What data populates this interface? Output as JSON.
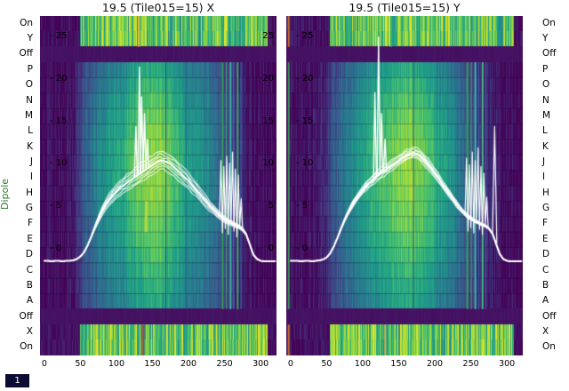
{
  "figure": {
    "ylabel_text": "Dipole",
    "ylabel_color": "#2e7d32",
    "page_indicator": "1",
    "dipole_labels": [
      "On",
      "Y",
      "Off",
      "P",
      "O",
      "N",
      "M",
      "L",
      "K",
      "J",
      "I",
      "H",
      "G",
      "F",
      "E",
      "D",
      "C",
      "B",
      "A",
      "Off",
      "X",
      "On"
    ],
    "colormap": [
      "#440154",
      "#46327e",
      "#365c8d",
      "#277f8e",
      "#1fa187",
      "#4ac16d",
      "#a0da39",
      "#fde725"
    ]
  },
  "chart_data": [
    {
      "type": "heatmap",
      "title": "19.5 (Tile015=15) X",
      "x_range": [
        -6,
        322
      ],
      "x_ticks": [
        0,
        50,
        100,
        150,
        200,
        250,
        300
      ],
      "tick_values": [
        25,
        20,
        15,
        10,
        5,
        0
      ],
      "left_tick_labels": [
        "- 25",
        "- 20",
        "- 15",
        "- 10",
        "- 5",
        "- 0"
      ],
      "right_tick_labels": [
        "25",
        "20",
        "15",
        "10",
        "5",
        "0"
      ],
      "seed": 3,
      "band_start": 50,
      "band_end": 310,
      "band_level": 0.74,
      "row_factors": [
        0.8,
        0.88,
        0.95,
        1.0,
        1.04,
        1.07,
        1.08,
        1.08,
        1.06,
        1.03,
        1.0,
        0.96,
        0.92,
        0.87,
        0.82,
        0.78
      ],
      "heat": {
        "x0": 0,
        "dx": 10,
        "v": [
          0.03,
          0.03,
          0.04,
          0.05,
          0.08,
          0.18,
          0.3,
          0.38,
          0.45,
          0.5,
          0.56,
          0.6,
          0.66,
          0.7,
          0.74,
          0.78,
          0.76,
          0.72,
          0.66,
          0.6,
          0.54,
          0.5,
          0.46,
          0.42,
          0.34,
          0.22,
          0.16,
          0.12,
          0.08,
          0.05,
          0.04,
          0.03,
          0.03
        ]
      },
      "stripes": [
        {
          "x": 130,
          "w": 2,
          "c": "#e8b33a",
          "r0": 0,
          "r1": 1
        },
        {
          "x": 136,
          "w": 2,
          "c": "#cc2b1e",
          "r0": 20,
          "r1": 21
        },
        {
          "x": 100,
          "w": 1,
          "c": "#7ad63a",
          "r0": 20,
          "r1": 21
        },
        {
          "x": 246,
          "w": 2,
          "c": "#2fa84e",
          "r0": 3,
          "r1": 18
        },
        {
          "x": 252,
          "w": 1,
          "c": "#45c06a",
          "r0": 3,
          "r1": 18
        },
        {
          "x": 257,
          "w": 2,
          "c": "#35c4a8",
          "r0": 3,
          "r1": 18
        },
        {
          "x": 262,
          "w": 1,
          "c": "#2e86c0",
          "r0": 3,
          "r1": 18
        },
        {
          "x": 267,
          "w": 2,
          "c": "#38b868",
          "r0": 3,
          "r1": 18
        },
        {
          "x": 272,
          "w": 1,
          "c": "#2f6fae",
          "r0": 3,
          "r1": 18
        },
        {
          "x": 277,
          "w": 1,
          "c": "#26407a",
          "r0": 3,
          "r1": 18
        },
        {
          "x": 168,
          "w": 1,
          "c": "#1e4f78",
          "r0": 3,
          "r1": 18
        },
        {
          "x": 196,
          "w": 1,
          "c": "#20648a",
          "r0": 3,
          "r1": 18
        },
        {
          "x": 140,
          "w": 2,
          "c": "#d8e23c",
          "r0": 12,
          "r1": 13
        }
      ],
      "trace": {
        "x0": 0,
        "dx": 5,
        "v": [
          -1.3,
          -1.3,
          -1.35,
          -1.3,
          -1.3,
          -1.35,
          -1.3,
          -1.3,
          -1.25,
          -1.1,
          -0.8,
          -0.3,
          0.5,
          1.5,
          2.6,
          3.6,
          4.5,
          5.3,
          5.9,
          6.4,
          6.9,
          7.3,
          7.6,
          7.9,
          8.2,
          8.5,
          8.8,
          9.1,
          9.4,
          9.7,
          10.0,
          10.3,
          10.5,
          10.5,
          10.3,
          10.1,
          9.7,
          9.3,
          8.9,
          8.5,
          8.1,
          7.6,
          7.1,
          6.6,
          6.1,
          5.6,
          5.1,
          4.7,
          4.3,
          3.9,
          3.6,
          3.3,
          3.1,
          2.9,
          2.7,
          2.4,
          1.8,
          0.6,
          -0.6,
          -1.1,
          -1.3,
          -1.35,
          -1.35,
          -1.35,
          -1.35
        ]
      },
      "trace_fan": {
        "count": 7,
        "spread": 1.1,
        "seed": 11
      },
      "spikes": [
        [
          127,
          14.5
        ],
        [
          132,
          21.5
        ],
        [
          135,
          18.0
        ],
        [
          139,
          16.0
        ],
        [
          143,
          13.0
        ]
      ],
      "zigzag": [
        [
          243,
          4.0
        ],
        [
          245,
          10.5
        ],
        [
          247,
          2.0
        ],
        [
          249,
          9.8
        ],
        [
          251,
          2.5
        ],
        [
          253,
          11.0
        ],
        [
          255,
          1.8
        ],
        [
          257,
          10.2
        ],
        [
          259,
          3.0
        ],
        [
          261,
          11.5
        ],
        [
          263,
          2.2
        ],
        [
          265,
          9.5
        ],
        [
          267,
          1.5
        ],
        [
          269,
          8.8
        ],
        [
          271,
          2.8
        ],
        [
          273,
          6.0
        ],
        [
          275,
          2.4
        ]
      ]
    },
    {
      "type": "heatmap",
      "title": "19.5 (Tile015=15) Y",
      "x_range": [
        -6,
        322
      ],
      "x_ticks": [
        0,
        50,
        100,
        150,
        200,
        250,
        300
      ],
      "tick_values": [
        25,
        20,
        15,
        10,
        5,
        0
      ],
      "left_tick_labels": [
        "- 25",
        "- 20",
        "- 15",
        "- 10",
        "- 5",
        "- 0"
      ],
      "right_tick_labels": [],
      "seed": 9,
      "band_start": 55,
      "band_end": 310,
      "band_level": 0.74,
      "row_factors": [
        0.8,
        0.88,
        0.95,
        1.0,
        1.04,
        1.07,
        1.08,
        1.08,
        1.06,
        1.03,
        1.0,
        0.96,
        0.92,
        0.87,
        0.82,
        0.78
      ],
      "heat": {
        "x0": 0,
        "dx": 10,
        "v": [
          0.03,
          0.03,
          0.04,
          0.05,
          0.07,
          0.14,
          0.26,
          0.35,
          0.42,
          0.47,
          0.52,
          0.57,
          0.62,
          0.66,
          0.7,
          0.74,
          0.77,
          0.76,
          0.72,
          0.66,
          0.6,
          0.54,
          0.48,
          0.42,
          0.34,
          0.22,
          0.15,
          0.11,
          0.08,
          0.05,
          0.04,
          0.03,
          0.03
        ]
      },
      "stripes": [
        {
          "x": -4,
          "w": 2,
          "c": "#d97b2a",
          "r0": 0,
          "r1": 1
        },
        {
          "x": -4,
          "w": 2,
          "c": "#d97b2a",
          "r0": 20,
          "r1": 21
        },
        {
          "x": -4,
          "w": 2,
          "c": "#3aa65c",
          "r0": 3,
          "r1": 18
        },
        {
          "x": 130,
          "w": 2,
          "c": "#e8b33a",
          "r0": 20,
          "r1": 21
        },
        {
          "x": 200,
          "w": 2,
          "c": "#56d05c",
          "r0": 20,
          "r1": 21
        },
        {
          "x": 138,
          "w": 2,
          "c": "#35b56a",
          "r0": 0,
          "r1": 1
        },
        {
          "x": 244,
          "w": 2,
          "c": "#2fa84e",
          "r0": 3,
          "r1": 18
        },
        {
          "x": 250,
          "w": 1,
          "c": "#45c06a",
          "r0": 3,
          "r1": 18
        },
        {
          "x": 255,
          "w": 2,
          "c": "#35c4a8",
          "r0": 3,
          "r1": 18
        },
        {
          "x": 260,
          "w": 1,
          "c": "#2e86c0",
          "r0": 3,
          "r1": 18
        },
        {
          "x": 265,
          "w": 2,
          "c": "#43d08a",
          "r0": 3,
          "r1": 18
        },
        {
          "x": 270,
          "w": 1,
          "c": "#2f6fae",
          "r0": 3,
          "r1": 18
        },
        {
          "x": 276,
          "w": 1,
          "c": "#26407a",
          "r0": 3,
          "r1": 18
        },
        {
          "x": 170,
          "w": 1,
          "c": "#1e4f78",
          "r0": 3,
          "r1": 18
        }
      ],
      "trace": {
        "x0": 0,
        "dx": 5,
        "v": [
          -1.3,
          -1.3,
          -1.3,
          -1.35,
          -1.3,
          -1.3,
          -1.35,
          -1.3,
          -1.25,
          -1.15,
          -0.9,
          -0.4,
          0.4,
          1.4,
          2.5,
          3.5,
          4.4,
          5.2,
          5.9,
          6.5,
          7.0,
          7.5,
          7.9,
          8.3,
          8.7,
          9.0,
          9.3,
          9.6,
          9.9,
          10.2,
          10.5,
          10.8,
          11.1,
          11.3,
          11.4,
          11.3,
          11.0,
          10.6,
          10.1,
          9.6,
          9.0,
          8.4,
          7.8,
          7.2,
          6.6,
          6.0,
          5.4,
          4.9,
          4.4,
          4.0,
          3.7,
          3.4,
          3.2,
          3.0,
          2.8,
          2.5,
          1.9,
          0.7,
          -0.5,
          -1.1,
          -1.3,
          -1.35,
          -1.35,
          -1.35,
          -1.35
        ]
      },
      "trace_fan": {
        "count": 7,
        "spread": 0.6,
        "seed": 23
      },
      "spikes": [
        [
          117,
          18.5
        ],
        [
          122,
          25.0
        ],
        [
          126,
          16.0
        ],
        [
          131,
          13.0
        ]
      ],
      "zigzag": [
        [
          242,
          4.2
        ],
        [
          244,
          10.8
        ],
        [
          246,
          2.2
        ],
        [
          248,
          10.0
        ],
        [
          250,
          2.6
        ],
        [
          252,
          11.5
        ],
        [
          254,
          2.0
        ],
        [
          256,
          10.5
        ],
        [
          258,
          3.2
        ],
        [
          260,
          12.0
        ],
        [
          262,
          2.4
        ],
        [
          264,
          9.8
        ],
        [
          266,
          1.8
        ],
        [
          268,
          9.0
        ],
        [
          270,
          3.0
        ],
        [
          272,
          6.2
        ],
        [
          274,
          2.6
        ],
        [
          280,
          1.9
        ],
        [
          283,
          14.5
        ],
        [
          286,
          0.8
        ]
      ]
    }
  ]
}
